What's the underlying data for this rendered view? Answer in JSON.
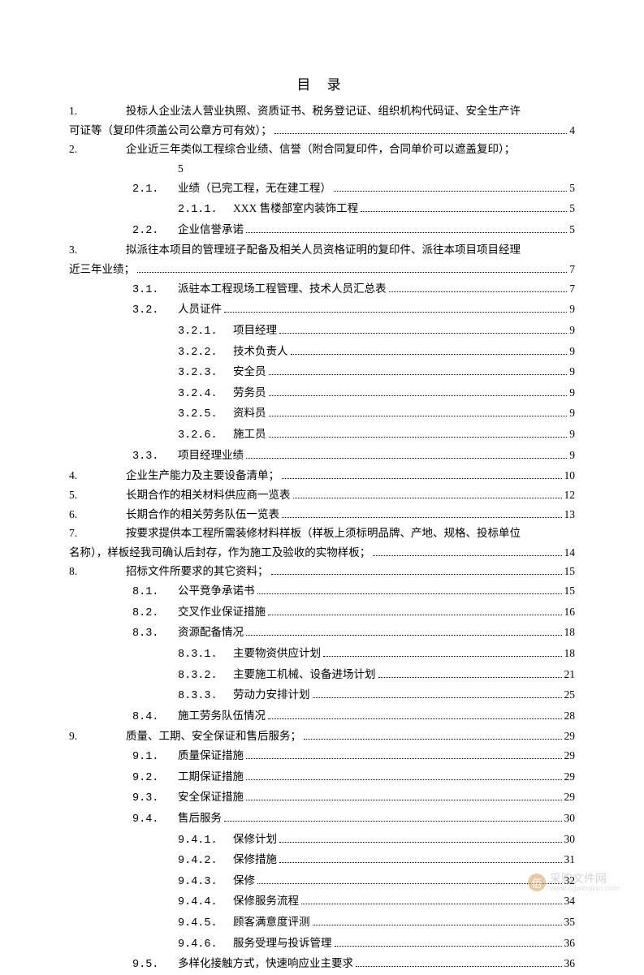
{
  "title": "目 录",
  "watermark": {
    "icon": "佰",
    "text": "采购文件网",
    "sub": "www.cgwenjian.com"
  },
  "toc": [
    {
      "lvl": 1,
      "num": "1.",
      "txt": "投标人企业法人营业执照、资质证书、税务登记证、组织机构代码证、安全生产许",
      "pg": "",
      "nodots": true
    },
    {
      "lvl": 0,
      "num": "",
      "txt": "可证等（复印件须盖公司公章方可有效）；",
      "pg": "4"
    },
    {
      "lvl": 1,
      "num": "2.",
      "txt": "企业近三年类似工程综合业绩、信誉（附合同复印件，合同单价可以遮盖复印）；",
      "pg": "",
      "nodots": true
    },
    {
      "lvl": 0,
      "num": "",
      "txt": "5",
      "pg": "",
      "nodots": true,
      "inline": true
    },
    {
      "lvl": 2,
      "num": "2.1.",
      "txt": "业绩（已完工程，无在建工程）",
      "pg": "5"
    },
    {
      "lvl": 3,
      "num": "2.1.1.",
      "txt": "XXX 售楼部室内装饰工程",
      "pg": "5"
    },
    {
      "lvl": 2,
      "num": "2.2.",
      "txt": "企业信誉承诺",
      "pg": "5"
    },
    {
      "lvl": 1,
      "num": "3.",
      "txt": "拟派往本项目的管理班子配备及相关人员资格证明的复印件、派往本项目项目经理",
      "pg": "",
      "nodots": true
    },
    {
      "lvl": 0,
      "num": "",
      "txt": "近三年业绩；",
      "pg": "7"
    },
    {
      "lvl": 2,
      "num": "3.1.",
      "txt": "派驻本工程现场工程管理、技术人员汇总表",
      "pg": "7"
    },
    {
      "lvl": 2,
      "num": "3.2.",
      "txt": "人员证件",
      "pg": "9"
    },
    {
      "lvl": 3,
      "num": "3.2.1.",
      "txt": "项目经理",
      "pg": "9"
    },
    {
      "lvl": 3,
      "num": "3.2.2.",
      "txt": "技术负责人",
      "pg": "9"
    },
    {
      "lvl": 3,
      "num": "3.2.3.",
      "txt": "安全员",
      "pg": "9"
    },
    {
      "lvl": 3,
      "num": "3.2.4.",
      "txt": "劳务员",
      "pg": "9"
    },
    {
      "lvl": 3,
      "num": "3.2.5.",
      "txt": "资料员",
      "pg": "9"
    },
    {
      "lvl": 3,
      "num": "3.2.6.",
      "txt": "施工员",
      "pg": "9"
    },
    {
      "lvl": 2,
      "num": "3.3.",
      "txt": "项目经理业绩",
      "pg": "9"
    },
    {
      "lvl": 1,
      "num": "4.",
      "txt": "企业生产能力及主要设备清单；",
      "pg": "10"
    },
    {
      "lvl": 1,
      "num": "5.",
      "txt": "长期合作的相关材料供应商一览表",
      "pg": "12"
    },
    {
      "lvl": 1,
      "num": "6.",
      "txt": "长期合作的相关劳务队伍一览表",
      "pg": "13"
    },
    {
      "lvl": 1,
      "num": "7.",
      "txt": "按要求提供本工程所需装修材料样板（样板上须标明品牌、产地、规格、投标单位",
      "pg": "",
      "nodots": true
    },
    {
      "lvl": 0,
      "num": "",
      "txt": "名称），样板经我司确认后封存，作为施工及验收的实物样板；",
      "pg": "14"
    },
    {
      "lvl": 1,
      "num": "8.",
      "txt": "招标文件所要求的其它资料；",
      "pg": "15"
    },
    {
      "lvl": 2,
      "num": "8.1.",
      "txt": "公平竞争承诺书",
      "pg": "15"
    },
    {
      "lvl": 2,
      "num": "8.2.",
      "txt": "交叉作业保证措施",
      "pg": "16"
    },
    {
      "lvl": 2,
      "num": "8.3.",
      "txt": "资源配备情况",
      "pg": "18"
    },
    {
      "lvl": 3,
      "num": "8.3.1.",
      "txt": "主要物资供应计划",
      "pg": "18"
    },
    {
      "lvl": 3,
      "num": "8.3.2.",
      "txt": "主要施工机械、设备进场计划",
      "pg": "21"
    },
    {
      "lvl": 3,
      "num": "8.3.3.",
      "txt": "劳动力安排计划",
      "pg": "25"
    },
    {
      "lvl": 2,
      "num": "8.4.",
      "txt": "施工劳务队伍情况",
      "pg": "28"
    },
    {
      "lvl": 1,
      "num": "9.",
      "txt": "质量、工期、安全保证和售后服务；",
      "pg": "29"
    },
    {
      "lvl": 2,
      "num": "9.1.",
      "txt": "质量保证措施",
      "pg": "29"
    },
    {
      "lvl": 2,
      "num": "9.2.",
      "txt": "工期保证措施",
      "pg": "29"
    },
    {
      "lvl": 2,
      "num": "9.3.",
      "txt": "安全保证措施",
      "pg": "29"
    },
    {
      "lvl": 2,
      "num": "9.4.",
      "txt": "售后服务",
      "pg": "30"
    },
    {
      "lvl": 3,
      "num": "9.4.1.",
      "txt": "保修计划",
      "pg": "30"
    },
    {
      "lvl": 3,
      "num": "9.4.2.",
      "txt": "保修措施",
      "pg": "31"
    },
    {
      "lvl": 3,
      "num": "9.4.3.",
      "txt": "保修",
      "pg": "32"
    },
    {
      "lvl": 3,
      "num": "9.4.4.",
      "txt": "保修服务流程",
      "pg": "34"
    },
    {
      "lvl": 3,
      "num": "9.4.5.",
      "txt": "顾客满意度评测",
      "pg": "35"
    },
    {
      "lvl": 3,
      "num": "9.4.6.",
      "txt": "服务受理与投诉管理",
      "pg": "36"
    },
    {
      "lvl": 2,
      "num": "9.5.",
      "txt": "多样化接触方式，快速响应业主要求",
      "pg": "36"
    }
  ]
}
